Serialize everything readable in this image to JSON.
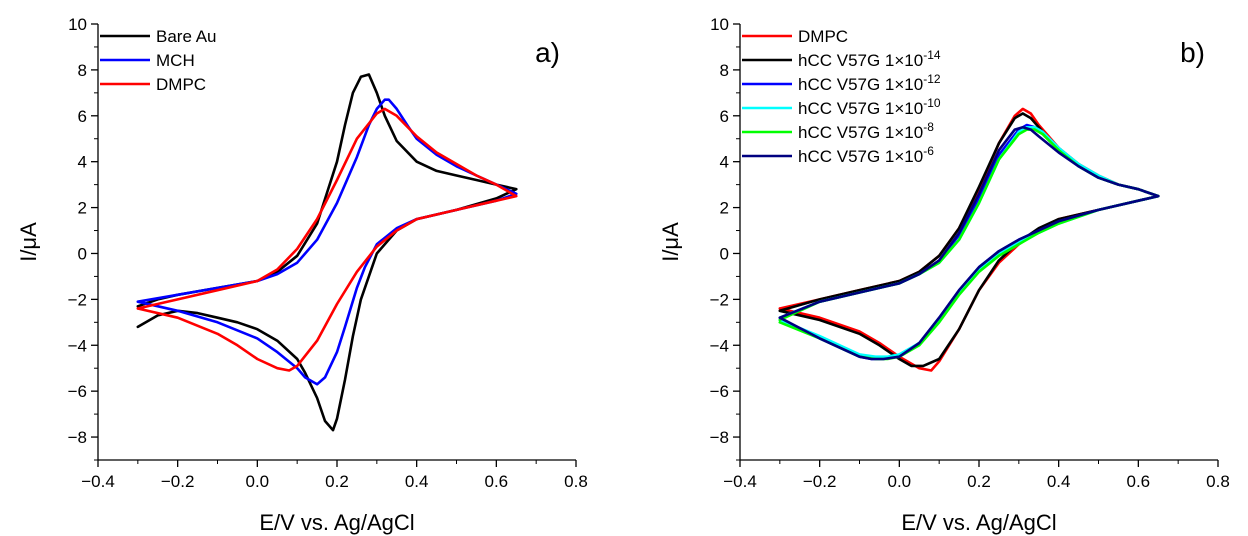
{
  "chart_data": [
    {
      "type": "line",
      "panel_label": "a)",
      "xlabel": "E/V vs. Ag/AgCl",
      "ylabel": "I/μA",
      "xlim": [
        -0.4,
        0.8
      ],
      "ylim": [
        -9,
        10
      ],
      "xticks": [
        -0.4,
        -0.2,
        0.0,
        0.2,
        0.4,
        0.6,
        0.8
      ],
      "xtick_labels": [
        "−0.4",
        "−0.2",
        "0.0",
        "0.2",
        "0.4",
        "0.6",
        "0.8"
      ],
      "yticks": [
        -8,
        -6,
        -4,
        -2,
        0,
        2,
        4,
        6,
        8,
        10
      ],
      "ytick_labels": [
        "−8",
        "−6",
        "−4",
        "−2",
        "0",
        "2",
        "4",
        "6",
        "8",
        "10"
      ],
      "grid": false,
      "legend_position": "top-left",
      "series": [
        {
          "name": "Bare Au",
          "color": "#000000",
          "x": [
            -0.3,
            -0.25,
            -0.2,
            -0.1,
            0.0,
            0.05,
            0.1,
            0.15,
            0.2,
            0.22,
            0.24,
            0.26,
            0.28,
            0.3,
            0.32,
            0.35,
            0.4,
            0.45,
            0.5,
            0.55,
            0.6,
            0.65,
            0.65,
            0.6,
            0.5,
            0.4,
            0.35,
            0.3,
            0.26,
            0.24,
            0.22,
            0.2,
            0.19,
            0.17,
            0.15,
            0.12,
            0.1,
            0.05,
            0.0,
            -0.05,
            -0.1,
            -0.15,
            -0.2,
            -0.25,
            -0.3
          ],
          "y": [
            -2.3,
            -2.0,
            -1.8,
            -1.5,
            -1.2,
            -0.8,
            -0.1,
            1.3,
            4.0,
            5.6,
            7.0,
            7.7,
            7.8,
            7.0,
            6.0,
            4.9,
            4.0,
            3.6,
            3.4,
            3.2,
            3.0,
            2.8,
            2.8,
            2.4,
            1.9,
            1.5,
            1.0,
            0.0,
            -2.0,
            -3.6,
            -5.5,
            -7.2,
            -7.7,
            -7.3,
            -6.3,
            -5.2,
            -4.6,
            -3.8,
            -3.3,
            -3.0,
            -2.8,
            -2.6,
            -2.5,
            -2.7,
            -3.2
          ]
        },
        {
          "name": "MCH",
          "color": "#0000ff",
          "x": [
            -0.3,
            -0.2,
            -0.1,
            0.0,
            0.05,
            0.1,
            0.15,
            0.2,
            0.25,
            0.28,
            0.3,
            0.32,
            0.33,
            0.35,
            0.38,
            0.4,
            0.45,
            0.5,
            0.55,
            0.6,
            0.65,
            0.65,
            0.6,
            0.5,
            0.4,
            0.35,
            0.3,
            0.27,
            0.25,
            0.22,
            0.2,
            0.17,
            0.15,
            0.12,
            0.1,
            0.05,
            0.0,
            -0.1,
            -0.2,
            -0.3
          ],
          "y": [
            -2.1,
            -1.8,
            -1.5,
            -1.2,
            -0.9,
            -0.4,
            0.6,
            2.2,
            4.2,
            5.6,
            6.3,
            6.7,
            6.7,
            6.3,
            5.5,
            5.0,
            4.3,
            3.8,
            3.4,
            3.0,
            2.6,
            2.6,
            2.3,
            1.9,
            1.5,
            1.1,
            0.4,
            -0.6,
            -1.5,
            -3.2,
            -4.3,
            -5.4,
            -5.7,
            -5.4,
            -5.0,
            -4.3,
            -3.7,
            -3.0,
            -2.5,
            -2.1
          ]
        },
        {
          "name": "DMPC",
          "color": "#ff0000",
          "x": [
            -0.3,
            -0.2,
            -0.1,
            0.0,
            0.05,
            0.1,
            0.15,
            0.2,
            0.25,
            0.3,
            0.32,
            0.35,
            0.4,
            0.45,
            0.5,
            0.55,
            0.6,
            0.65,
            0.65,
            0.6,
            0.5,
            0.4,
            0.35,
            0.3,
            0.25,
            0.2,
            0.15,
            0.1,
            0.08,
            0.05,
            0.0,
            -0.05,
            -0.1,
            -0.2,
            -0.3
          ],
          "y": [
            -2.4,
            -2.0,
            -1.6,
            -1.2,
            -0.7,
            0.2,
            1.5,
            3.2,
            5.0,
            6.1,
            6.3,
            6.0,
            5.1,
            4.4,
            3.9,
            3.4,
            3.0,
            2.5,
            2.5,
            2.3,
            1.9,
            1.5,
            1.0,
            0.3,
            -0.8,
            -2.2,
            -3.8,
            -4.9,
            -5.1,
            -5.0,
            -4.6,
            -4.0,
            -3.5,
            -2.8,
            -2.4
          ]
        }
      ]
    },
    {
      "type": "line",
      "panel_label": "b)",
      "xlabel": "E/V vs. Ag/AgCl",
      "ylabel": "I/μA",
      "xlim": [
        -0.4,
        0.8
      ],
      "ylim": [
        -9,
        10
      ],
      "xticks": [
        -0.4,
        -0.2,
        0.0,
        0.2,
        0.4,
        0.6,
        0.8
      ],
      "xtick_labels": [
        "−0.4",
        "−0.2",
        "0.0",
        "0.2",
        "0.4",
        "0.6",
        "0.8"
      ],
      "yticks": [
        -8,
        -6,
        -4,
        -2,
        0,
        2,
        4,
        6,
        8,
        10
      ],
      "ytick_labels": [
        "−8",
        "−6",
        "−4",
        "−2",
        "0",
        "2",
        "4",
        "6",
        "8",
        "10"
      ],
      "grid": false,
      "legend_position": "top-left",
      "series": [
        {
          "name": "DMPC",
          "label_base": "DMPC",
          "label_exp": "",
          "color": "#ff0000",
          "x": [
            -0.3,
            -0.2,
            -0.1,
            0.0,
            0.05,
            0.1,
            0.15,
            0.2,
            0.25,
            0.29,
            0.31,
            0.33,
            0.35,
            0.4,
            0.45,
            0.5,
            0.55,
            0.6,
            0.65,
            0.65,
            0.6,
            0.5,
            0.4,
            0.35,
            0.3,
            0.25,
            0.2,
            0.15,
            0.1,
            0.08,
            0.05,
            0.0,
            -0.05,
            -0.1,
            -0.2,
            -0.3
          ],
          "y": [
            -2.4,
            -2.0,
            -1.6,
            -1.2,
            -0.8,
            -0.1,
            1.1,
            2.8,
            4.8,
            6.0,
            6.3,
            6.1,
            5.6,
            4.6,
            3.9,
            3.4,
            3.0,
            2.8,
            2.5,
            2.5,
            2.3,
            1.9,
            1.5,
            1.0,
            0.4,
            -0.4,
            -1.6,
            -3.3,
            -4.7,
            -5.1,
            -5.0,
            -4.5,
            -3.9,
            -3.4,
            -2.8,
            -2.4
          ]
        },
        {
          "name": "hCC V57G 1×10−14",
          "label_base": "hCC V57G 1×10",
          "label_exp": "-14",
          "color": "#000000",
          "x": [
            -0.3,
            -0.2,
            -0.1,
            0.0,
            0.05,
            0.1,
            0.15,
            0.2,
            0.25,
            0.29,
            0.31,
            0.33,
            0.35,
            0.4,
            0.45,
            0.5,
            0.55,
            0.6,
            0.65,
            0.65,
            0.6,
            0.5,
            0.4,
            0.35,
            0.3,
            0.25,
            0.2,
            0.15,
            0.1,
            0.06,
            0.03,
            0.0,
            -0.05,
            -0.1,
            -0.2,
            -0.3
          ],
          "y": [
            -2.5,
            -2.0,
            -1.6,
            -1.2,
            -0.8,
            -0.1,
            1.1,
            2.9,
            4.8,
            5.9,
            6.1,
            5.9,
            5.5,
            4.5,
            3.8,
            3.3,
            3.0,
            2.8,
            2.5,
            2.5,
            2.3,
            1.9,
            1.5,
            1.1,
            0.5,
            -0.3,
            -1.6,
            -3.3,
            -4.6,
            -4.9,
            -4.9,
            -4.6,
            -4.0,
            -3.5,
            -2.9,
            -2.5
          ]
        },
        {
          "name": "hCC V57G 1×10−12",
          "label_base": "hCC V57G 1×10",
          "label_exp": "-12",
          "color": "#0000ff",
          "x": [
            -0.3,
            -0.2,
            -0.1,
            0.0,
            0.05,
            0.1,
            0.15,
            0.2,
            0.25,
            0.3,
            0.32,
            0.34,
            0.36,
            0.4,
            0.45,
            0.5,
            0.55,
            0.6,
            0.65,
            0.65,
            0.6,
            0.5,
            0.4,
            0.35,
            0.3,
            0.25,
            0.2,
            0.15,
            0.1,
            0.05,
            0.0,
            -0.04,
            -0.07,
            -0.1,
            -0.2,
            -0.3
          ],
          "y": [
            -2.8,
            -2.1,
            -1.7,
            -1.3,
            -0.9,
            -0.3,
            0.8,
            2.4,
            4.3,
            5.4,
            5.6,
            5.5,
            5.2,
            4.5,
            3.8,
            3.3,
            3.0,
            2.8,
            2.5,
            2.5,
            2.3,
            1.9,
            1.4,
            1.0,
            0.6,
            0.1,
            -0.6,
            -1.6,
            -2.8,
            -3.9,
            -4.5,
            -4.6,
            -4.6,
            -4.5,
            -3.7,
            -2.9
          ]
        },
        {
          "name": "hCC V57G 1×10−10",
          "label_base": "hCC V57G 1×10",
          "label_exp": "-10",
          "color": "#00ffff",
          "x": [
            -0.3,
            -0.2,
            -0.1,
            0.0,
            0.05,
            0.1,
            0.15,
            0.2,
            0.25,
            0.3,
            0.32,
            0.34,
            0.36,
            0.4,
            0.45,
            0.5,
            0.55,
            0.6,
            0.65,
            0.65,
            0.6,
            0.5,
            0.4,
            0.35,
            0.3,
            0.25,
            0.2,
            0.15,
            0.1,
            0.05,
            0.0,
            -0.03,
            -0.06,
            -0.1,
            -0.2,
            -0.3
          ],
          "y": [
            -2.8,
            -2.1,
            -1.7,
            -1.3,
            -0.9,
            -0.4,
            0.6,
            2.2,
            4.1,
            5.3,
            5.5,
            5.5,
            5.3,
            4.6,
            3.9,
            3.4,
            3.0,
            2.8,
            2.5,
            2.5,
            2.3,
            1.9,
            1.3,
            0.9,
            0.5,
            0.0,
            -0.7,
            -1.7,
            -2.9,
            -3.9,
            -4.4,
            -4.5,
            -4.5,
            -4.4,
            -3.6,
            -2.9
          ]
        },
        {
          "name": "hCC V57G 1×10−8",
          "label_base": "hCC V57G 1×10",
          "label_exp": "-8",
          "color": "#00ff00",
          "x": [
            -0.3,
            -0.2,
            -0.1,
            0.0,
            0.05,
            0.1,
            0.15,
            0.2,
            0.25,
            0.3,
            0.32,
            0.34,
            0.36,
            0.4,
            0.45,
            0.5,
            0.55,
            0.6,
            0.65,
            0.65,
            0.6,
            0.5,
            0.4,
            0.35,
            0.3,
            0.25,
            0.2,
            0.15,
            0.1,
            0.05,
            0.0,
            -0.03,
            -0.06,
            -0.1,
            -0.2,
            -0.3
          ],
          "y": [
            -2.9,
            -2.1,
            -1.7,
            -1.3,
            -0.9,
            -0.4,
            0.6,
            2.2,
            4.1,
            5.2,
            5.4,
            5.4,
            5.2,
            4.5,
            3.8,
            3.3,
            3.0,
            2.8,
            2.5,
            2.5,
            2.3,
            1.9,
            1.3,
            0.9,
            0.4,
            -0.1,
            -0.8,
            -1.8,
            -3.0,
            -4.0,
            -4.5,
            -4.6,
            -4.6,
            -4.5,
            -3.7,
            -3.0
          ]
        },
        {
          "name": "hCC V57G 1×10−6",
          "label_base": "hCC V57G 1×10",
          "label_exp": "-6",
          "color": "#000080",
          "x": [
            -0.3,
            -0.2,
            -0.1,
            0.0,
            0.05,
            0.1,
            0.15,
            0.2,
            0.25,
            0.29,
            0.31,
            0.33,
            0.35,
            0.4,
            0.45,
            0.5,
            0.55,
            0.6,
            0.65,
            0.65,
            0.6,
            0.5,
            0.4,
            0.35,
            0.3,
            0.25,
            0.2,
            0.15,
            0.1,
            0.05,
            0.0,
            -0.04,
            -0.07,
            -0.1,
            -0.2,
            -0.3
          ],
          "y": [
            -2.8,
            -2.1,
            -1.7,
            -1.3,
            -0.9,
            -0.3,
            0.9,
            2.6,
            4.5,
            5.4,
            5.5,
            5.4,
            5.1,
            4.4,
            3.8,
            3.3,
            3.0,
            2.8,
            2.5,
            2.5,
            2.3,
            1.9,
            1.4,
            1.0,
            0.6,
            0.1,
            -0.6,
            -1.6,
            -2.8,
            -3.9,
            -4.5,
            -4.6,
            -4.6,
            -4.5,
            -3.7,
            -2.8
          ]
        }
      ]
    }
  ]
}
